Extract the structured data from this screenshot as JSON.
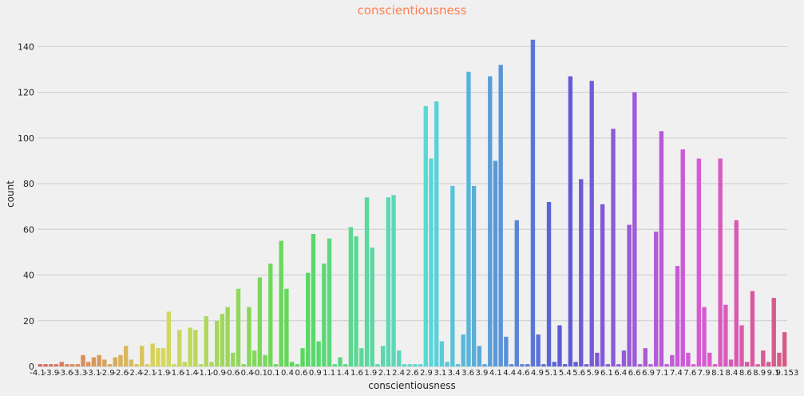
{
  "chart_data": {
    "type": "bar",
    "title": "conscientiousness",
    "xlabel": "conscientiousness",
    "ylabel": "count",
    "ylim": [
      0,
      152
    ],
    "y_ticks": [
      0,
      20,
      40,
      60,
      80,
      100,
      120,
      140
    ],
    "grid": "horizontal",
    "x_tick_labels": [
      "-4.1",
      "-3.9",
      "-3.6",
      "-3.3",
      "-3.1",
      "-2.9",
      "-2.6",
      "-2.4",
      "-2.1",
      "-1.9",
      "-1.6",
      "-1.4",
      "-1.1",
      "-0.9",
      "-0.6",
      "-0.4",
      "-0.1",
      "0.1",
      "0.4",
      "0.6",
      "0.9",
      "1.1",
      "1.4",
      "1.6",
      "1.9",
      "2.1",
      "2.4",
      "2.6",
      "2.9",
      "3.1",
      "3.4",
      "3.6",
      "3.9",
      "4.1",
      "4.4",
      "4.6",
      "4.9",
      "5.1",
      "5.4",
      "5.6",
      "5.9",
      "6.1",
      "6.4",
      "6.6",
      "6.9",
      "7.1",
      "7.4",
      "7.6",
      "7.9",
      "8.1",
      "8.4",
      "8.6",
      "8.9",
      "9.1",
      "9.153"
    ],
    "values": [
      1,
      1,
      1,
      1,
      2,
      1,
      1,
      1,
      5,
      2,
      4,
      5,
      3,
      1,
      4,
      5,
      9,
      3,
      1,
      9,
      1,
      10,
      8,
      8,
      24,
      1,
      16,
      2,
      17,
      16,
      1,
      22,
      2,
      20,
      23,
      26,
      6,
      34,
      1,
      26,
      7,
      39,
      5,
      45,
      1,
      55,
      34,
      2,
      1,
      8,
      41,
      58,
      11,
      45,
      56,
      1,
      4,
      1,
      61,
      57,
      8,
      74,
      52,
      1,
      9,
      74,
      75,
      7,
      1,
      1,
      1,
      1,
      114,
      91,
      116,
      11,
      2,
      79,
      1,
      14,
      129,
      79,
      9,
      1,
      127,
      90,
      132,
      13,
      1,
      64,
      1,
      1,
      143,
      14,
      1,
      72,
      2,
      18,
      1,
      127,
      2,
      82,
      1,
      125,
      6,
      71,
      1,
      104,
      1,
      7,
      62,
      120,
      1,
      8,
      1,
      59,
      103,
      1,
      5,
      44,
      95,
      6,
      1,
      91,
      26,
      6,
      1,
      91,
      27,
      3,
      64,
      18,
      2,
      33,
      1,
      7,
      2,
      30,
      6,
      15
    ]
  }
}
